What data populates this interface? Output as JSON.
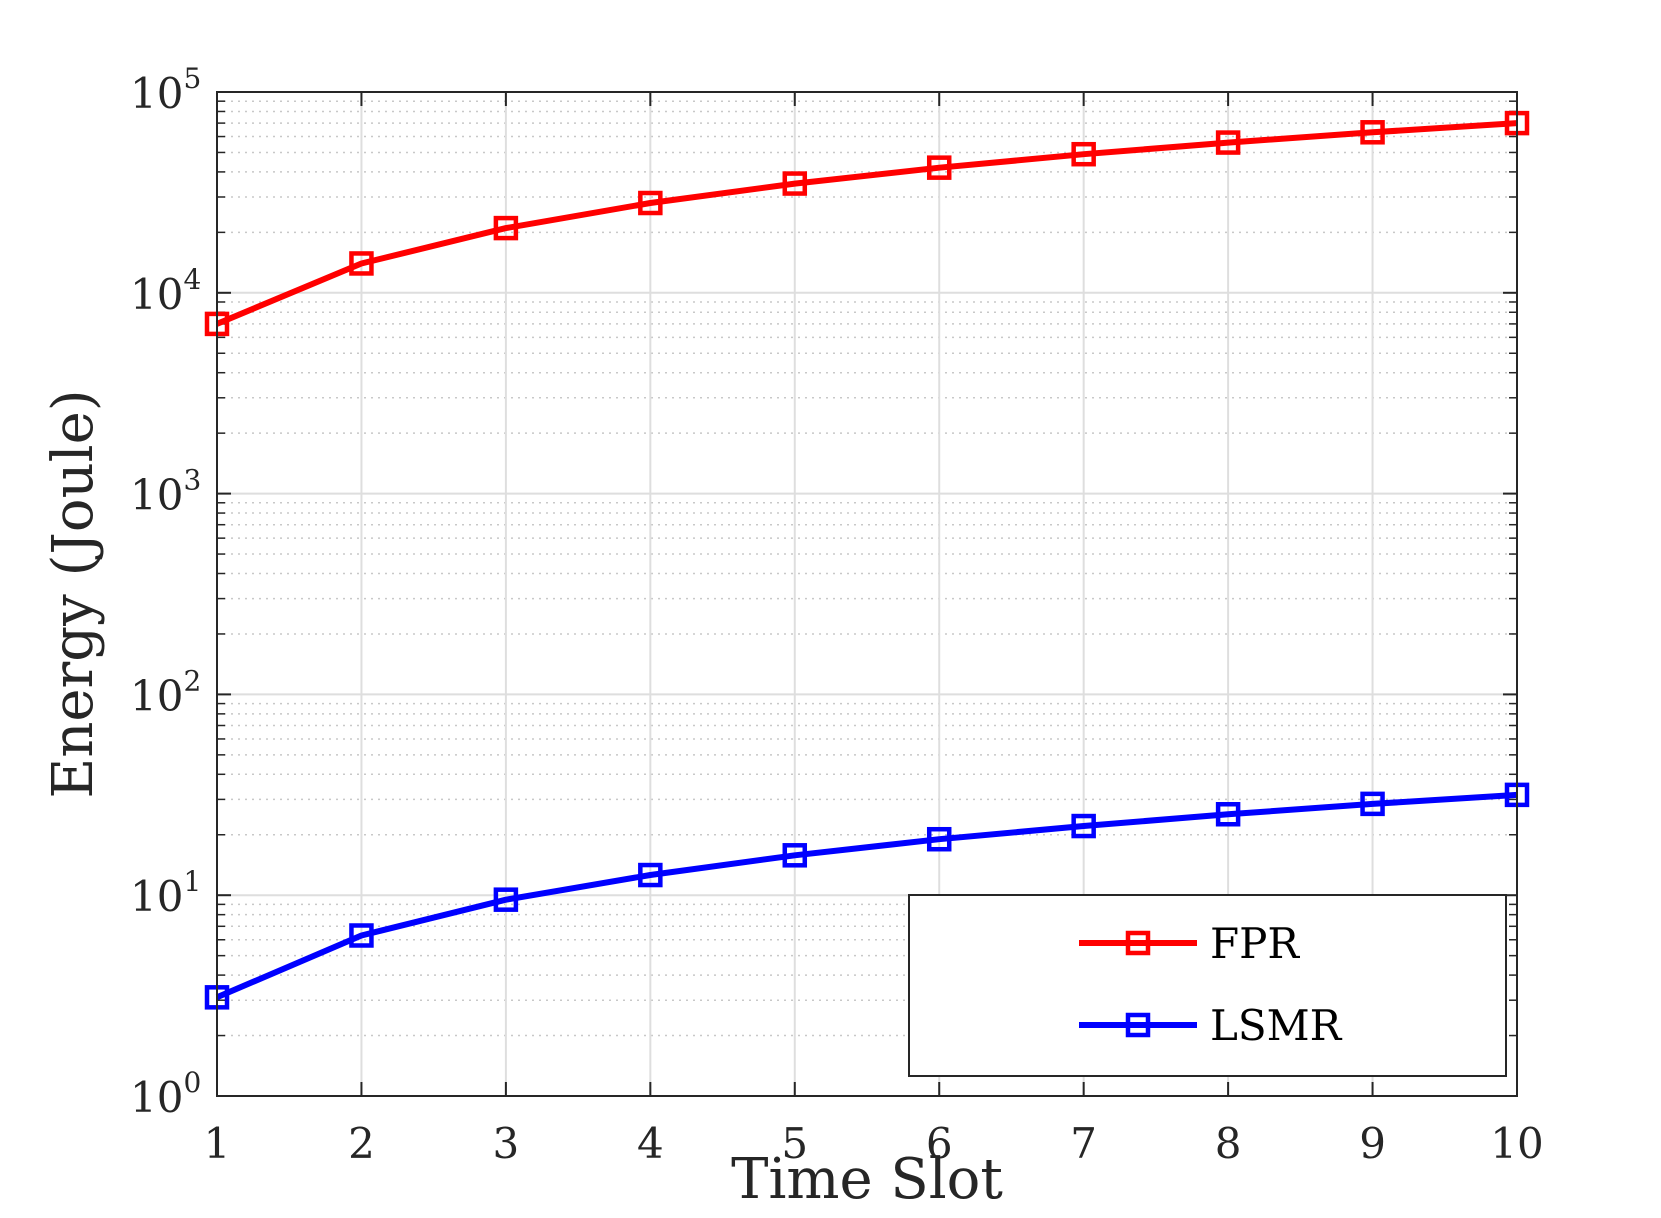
{
  "chart_data": {
    "type": "line",
    "x": [
      1,
      2,
      3,
      4,
      5,
      6,
      7,
      8,
      9,
      10
    ],
    "xlabel": "Time Slot",
    "ylabel": "Energy (Joule)",
    "xlim": [
      1,
      10
    ],
    "ylim": [
      1,
      100000
    ],
    "yscale": "log",
    "x_ticks": [
      "1",
      "2",
      "3",
      "4",
      "5",
      "6",
      "7",
      "8",
      "9",
      "10"
    ],
    "y_ticks": [
      {
        "base": "10",
        "exp": "0"
      },
      {
        "base": "10",
        "exp": "1"
      },
      {
        "base": "10",
        "exp": "2"
      },
      {
        "base": "10",
        "exp": "3"
      },
      {
        "base": "10",
        "exp": "4"
      },
      {
        "base": "10",
        "exp": "5"
      }
    ],
    "grid": true,
    "minor_grid": true,
    "legend_position": "bottom-right",
    "series": [
      {
        "name": "FPR",
        "color": "#ff0000",
        "marker": "square",
        "values": [
          7000,
          14000,
          21000,
          28000,
          35000,
          42000,
          49000,
          56000,
          63000,
          70000
        ]
      },
      {
        "name": "LSMR",
        "color": "#0000ff",
        "marker": "square",
        "values": [
          3.1,
          6.3,
          9.5,
          12.6,
          15.8,
          19.0,
          22.1,
          25.3,
          28.5,
          31.6
        ]
      }
    ]
  }
}
